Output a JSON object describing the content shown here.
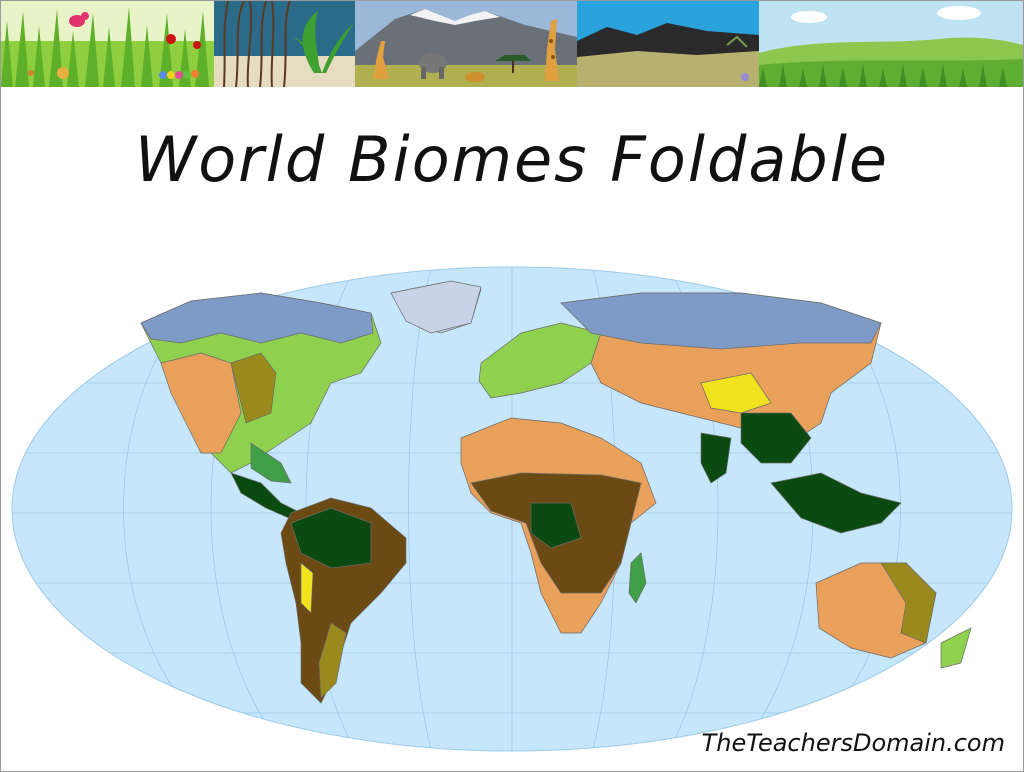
{
  "slide": {
    "title": "World Biomes Foldable",
    "credit": "TheTeachersDomain.com"
  },
  "banner": {
    "panels": [
      {
        "name": "meadow-panel",
        "icon": "bird-ladybug-caterpillar"
      },
      {
        "name": "wetland-panel",
        "icon": "reeds-plants"
      },
      {
        "name": "savanna-panel",
        "icon": "mountain-elephant-giraffe"
      },
      {
        "name": "desert-panel",
        "icon": "dark-hills"
      },
      {
        "name": "grassland-panel",
        "icon": "green-hills-clouds"
      }
    ]
  },
  "colors": {
    "ocean": "#c6e6fb",
    "tundra": "#c9d3e8",
    "taiga": "#7d9bc6",
    "temperate_forest": "#8fd14f",
    "grassland": "#9a8a1e",
    "desert": "#e8a05a",
    "savanna": "#6b4a14",
    "rainforest": "#0b4a10",
    "mountain": "#f0e31e",
    "shrubland": "#3fa047"
  }
}
